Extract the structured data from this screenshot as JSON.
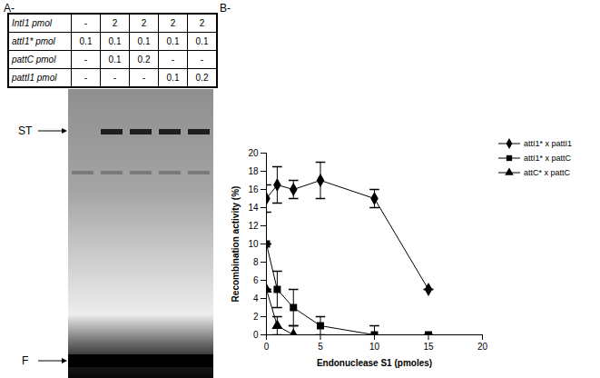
{
  "panel_a": {
    "label": "A-",
    "table": {
      "rows": [
        {
          "header": "IntI1 pmol",
          "cells": [
            "-",
            "2",
            "2",
            "2",
            "2"
          ]
        },
        {
          "header": "attI1* pmol",
          "cells": [
            "0.1",
            "0.1",
            "0.1",
            "0.1",
            "0.1"
          ]
        },
        {
          "header": "pattC pmol",
          "cells": [
            "-",
            "0.1",
            "0.2",
            "-",
            "-"
          ]
        },
        {
          "header": "pattI1 pmol",
          "cells": [
            "-",
            "-",
            "-",
            "0.1",
            "0.2"
          ]
        }
      ]
    },
    "gel_labels": {
      "top": "ST",
      "bottom": "F"
    }
  },
  "chart_data": {
    "panel_label": "B-",
    "type": "line",
    "x_label": "Endonuclease S1 (pmoles)",
    "y_label": "Recombination activity (%)",
    "xlim": [
      0,
      20
    ],
    "xticks": [
      0,
      5,
      10,
      15,
      20
    ],
    "ylim": [
      0,
      20
    ],
    "yticks": [
      0,
      2,
      4,
      6,
      8,
      10,
      12,
      14,
      16,
      18,
      20
    ],
    "grid": false,
    "legend": "right",
    "series": [
      {
        "name": "attI1* x pattI1",
        "color": "#000000",
        "marker": "diamond",
        "x": [
          0,
          1,
          2.5,
          5,
          10,
          15
        ],
        "values": [
          15,
          16.5,
          16,
          17,
          15,
          5
        ],
        "errors": [
          1.5,
          2,
          1,
          2,
          1,
          0
        ]
      },
      {
        "name": "attI1* x pattC",
        "color": "#000000",
        "marker": "square",
        "x": [
          0,
          1,
          2.5,
          5,
          10,
          15
        ],
        "values": [
          10,
          5,
          3,
          1,
          0,
          0
        ],
        "errors": [
          0,
          2,
          2,
          1,
          1,
          0
        ]
      },
      {
        "name": "attC* x pattC",
        "color": "#000000",
        "marker": "triangle",
        "x": [
          0,
          1,
          2.5
        ],
        "values": [
          5,
          1,
          0
        ],
        "errors": [
          0,
          1,
          1
        ]
      }
    ]
  }
}
